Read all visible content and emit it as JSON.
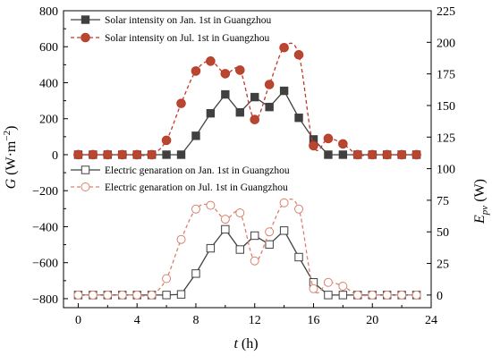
{
  "chart_data": {
    "type": "line",
    "xlabel": "t (h)",
    "ylabel_left": "G (W·m⁻²)",
    "ylabel_right": "E_pv (W)",
    "x_range": [
      -1,
      24
    ],
    "x_ticks": [
      0,
      4,
      8,
      12,
      16,
      20,
      24
    ],
    "y_left_range": [
      -850,
      800
    ],
    "y_left_ticks": [
      -800,
      -600,
      -400,
      -200,
      0,
      200,
      400,
      600,
      800
    ],
    "y_right_range": [
      -10,
      225
    ],
    "y_right_ticks": [
      0,
      25,
      50,
      75,
      100,
      125,
      150,
      175,
      200,
      225
    ],
    "x": [
      0,
      1,
      2,
      3,
      4,
      5,
      6,
      7,
      8,
      9,
      10,
      11,
      12,
      13,
      14,
      15,
      16,
      17,
      18,
      19,
      20,
      21,
      22,
      23
    ],
    "series": [
      {
        "name": "Solar intensity on Jan. 1st in Guangzhou",
        "axis": "left",
        "marker": "filled-square",
        "color": "#404040",
        "dash": false,
        "values": [
          0,
          0,
          0,
          0,
          0,
          0,
          0,
          0,
          105,
          230,
          335,
          235,
          320,
          265,
          355,
          205,
          85,
          0,
          0,
          0,
          0,
          0,
          0,
          0
        ]
      },
      {
        "name": "Solar intensity on Jul. 1st in Guangzhou",
        "axis": "left",
        "marker": "filled-circle",
        "color": "#c0392b",
        "fill": "#b5482e",
        "dash": true,
        "values": [
          0,
          0,
          0,
          0,
          0,
          0,
          80,
          285,
          465,
          520,
          450,
          470,
          195,
          390,
          595,
          555,
          50,
          90,
          60,
          0,
          0,
          0,
          0,
          0
        ]
      },
      {
        "name": "Electric genaration on Jan. 1st in Guangzhou",
        "axis": "right",
        "marker": "open-square",
        "color": "#404040",
        "dash": false,
        "values": [
          0,
          0,
          0,
          0,
          0,
          0,
          0,
          0.5,
          17,
          37,
          52,
          36,
          47,
          40,
          51,
          30,
          10,
          0,
          0,
          0,
          0,
          0,
          0,
          0
        ]
      },
      {
        "name": "Electric genaration on Jul. 1st in Guangzhou",
        "axis": "right",
        "marker": "open-circle",
        "color": "#d9826f",
        "dash": true,
        "values": [
          0,
          0,
          0,
          0,
          0,
          0,
          13,
          44,
          68,
          71,
          60,
          65,
          27,
          50,
          73,
          68,
          5,
          10,
          7,
          0,
          0,
          0,
          0,
          0
        ]
      }
    ]
  }
}
